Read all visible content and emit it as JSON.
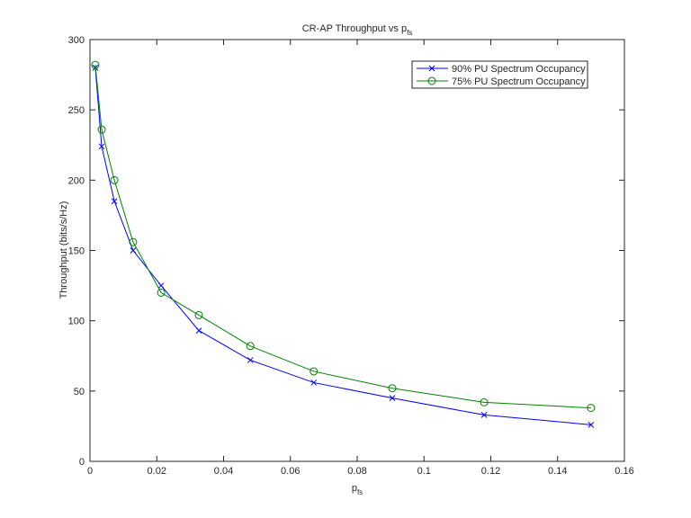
{
  "chart_data": {
    "type": "line",
    "title": "CR-AP Throughput vs p",
    "title_subscript": "fs",
    "xlabel": "p",
    "xlabel_subscript": "fs",
    "ylabel": "Throughput (bits/s/Hz)",
    "x": [
      0.0016,
      0.0035,
      0.0073,
      0.0129,
      0.0213,
      0.0326,
      0.048,
      0.067,
      0.0905,
      0.118,
      0.15
    ],
    "series": [
      {
        "name": "90% PU Spectrum Occupancy",
        "color": "#0000ff",
        "marker": "x",
        "values": [
          280,
          224,
          185,
          150,
          125,
          93,
          72,
          56,
          45,
          33,
          26
        ]
      },
      {
        "name": "75% PU Spectrum Occupancy",
        "color": "#008000",
        "marker": "o",
        "values": [
          282,
          236,
          200,
          156,
          120,
          104,
          82,
          64,
          52,
          42,
          38
        ]
      }
    ],
    "xlim": [
      0,
      0.16
    ],
    "xticks": [
      0,
      0.02,
      0.04,
      0.06,
      0.08,
      0.1,
      0.12,
      0.14,
      0.16
    ],
    "ylim": [
      0,
      300
    ],
    "yticks": [
      0,
      50,
      100,
      150,
      200,
      250,
      300
    ],
    "grid": false,
    "legend": "northeast"
  }
}
